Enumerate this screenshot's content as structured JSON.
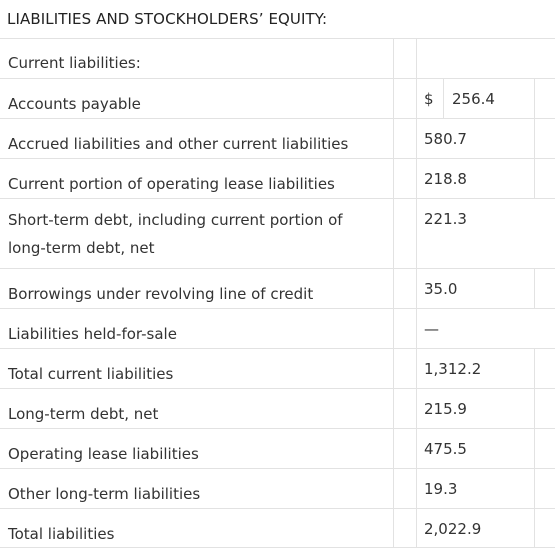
{
  "section_title": "LIABILITIES AND STOCKHOLDERS’ EQUITY:",
  "rows": [
    {
      "label": "Current liabilities:",
      "currency": "",
      "value": ""
    },
    {
      "label": "Accounts payable",
      "currency": "$",
      "value": "256.4"
    },
    {
      "label": "Accrued liabilities and other current liabilities",
      "currency": "",
      "value": "580.7"
    },
    {
      "label": "Current portion of operating lease liabilities",
      "currency": "",
      "value": "218.8"
    },
    {
      "label_line1": "Short-term debt, including current portion of",
      "label_line2": "long-term debt, net",
      "currency": "",
      "value": "221.3"
    },
    {
      "label": "Borrowings under revolving line of credit",
      "currency": "",
      "value": "35.0"
    },
    {
      "label": "Liabilities held-for-sale",
      "currency": "",
      "value": "—"
    },
    {
      "label": "Total current liabilities",
      "currency": "",
      "value": "1,312.2"
    },
    {
      "label": "Long-term debt, net",
      "currency": "",
      "value": "215.9"
    },
    {
      "label": "Operating lease liabilities",
      "currency": "",
      "value": "475.5"
    },
    {
      "label": "Other long-term liabilities",
      "currency": "",
      "value": "19.3"
    },
    {
      "label": "Total liabilities",
      "currency": "",
      "value": "2,022.9"
    }
  ]
}
